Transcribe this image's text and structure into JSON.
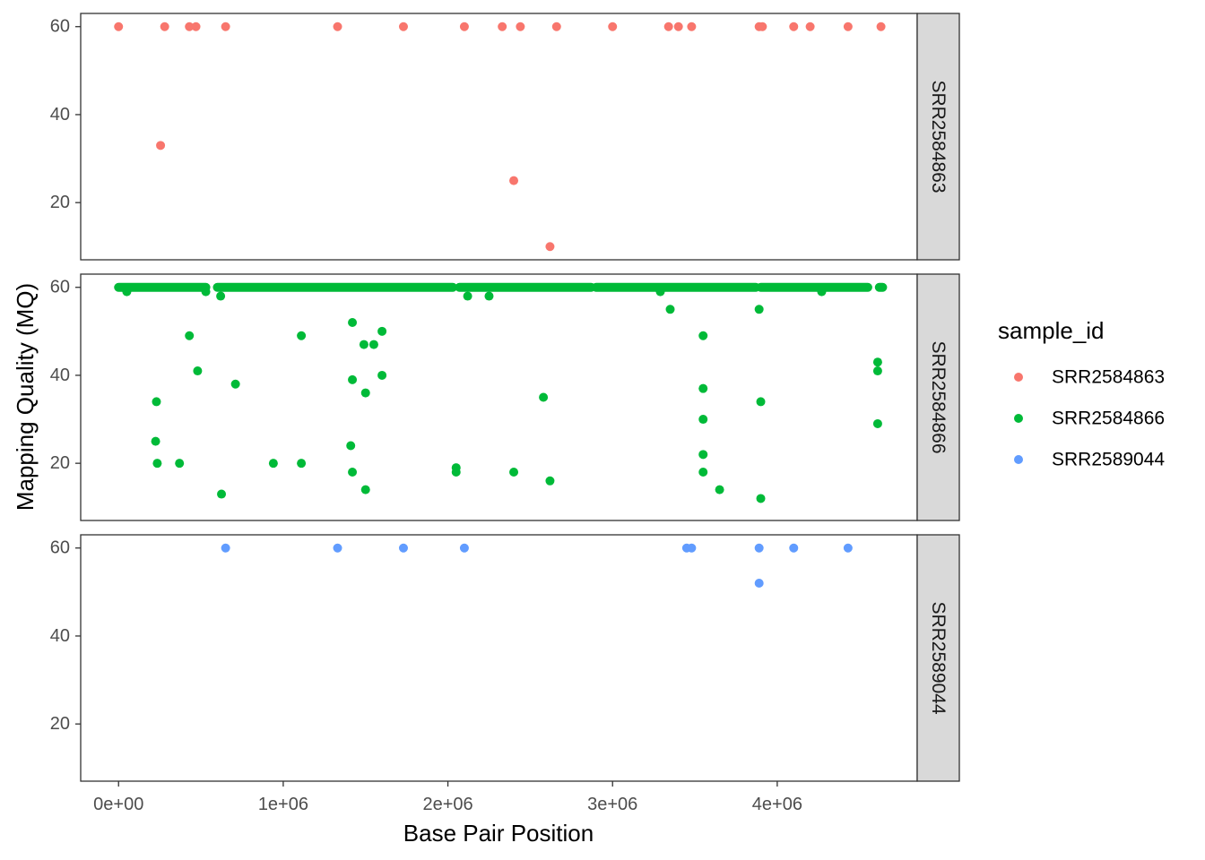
{
  "chart_data": {
    "type": "scatter",
    "xlabel": "Base Pair Position",
    "ylabel": "Mapping Quality (MQ)",
    "xlim": [
      -230000,
      4850000
    ],
    "ylim": [
      7,
      63
    ],
    "x_ticks": [
      0,
      1000000,
      2000000,
      3000000,
      4000000
    ],
    "x_tick_labels": [
      "0e+00",
      "1e+06",
      "2e+06",
      "3e+06",
      "4e+06"
    ],
    "y_ticks": [
      20,
      40,
      60
    ],
    "y_tick_labels": [
      "20",
      "40",
      "60"
    ],
    "legend": {
      "title": "sample_id",
      "position": "right",
      "entries": [
        "SRR2584863",
        "SRR2584866",
        "SRR2589044"
      ]
    },
    "colors": {
      "SRR2584863": "#F8766D",
      "SRR2584866": "#00BA38",
      "SRR2589044": "#619CFF",
      "strip_fill": "#D9D9D9",
      "panel_border": "#333333"
    },
    "panels": [
      {
        "strip_label": "SRR2584863",
        "series": "SRR2584863",
        "points": [
          [
            0,
            60
          ],
          [
            280000,
            60
          ],
          [
            430000,
            60
          ],
          [
            470000,
            60
          ],
          [
            650000,
            60
          ],
          [
            1330000,
            60
          ],
          [
            1730000,
            60
          ],
          [
            2100000,
            60
          ],
          [
            2330000,
            60
          ],
          [
            2440000,
            60
          ],
          [
            2660000,
            60
          ],
          [
            3000000,
            60
          ],
          [
            3340000,
            60
          ],
          [
            3400000,
            60
          ],
          [
            3480000,
            60
          ],
          [
            3890000,
            60
          ],
          [
            3910000,
            60
          ],
          [
            4100000,
            60
          ],
          [
            4200000,
            60
          ],
          [
            4430000,
            60
          ],
          [
            4630000,
            60
          ],
          [
            255000,
            33
          ],
          [
            2400000,
            25
          ],
          [
            2620000,
            10
          ]
        ]
      },
      {
        "strip_label": "SRR2584866",
        "series": "SRR2584866",
        "dense_runs": [
          [
            0,
            530000,
            60
          ],
          [
            600000,
            2030000,
            60
          ],
          [
            2070000,
            2870000,
            60
          ],
          [
            2900000,
            3870000,
            60
          ],
          [
            3900000,
            4550000,
            60
          ],
          [
            4620000,
            4640000,
            60
          ]
        ],
        "points": [
          [
            50000,
            59
          ],
          [
            530000,
            59
          ],
          [
            620000,
            58
          ],
          [
            2120000,
            58
          ],
          [
            2250000,
            58
          ],
          [
            3290000,
            59
          ],
          [
            4270000,
            59
          ],
          [
            230000,
            34
          ],
          [
            225000,
            25
          ],
          [
            235000,
            20
          ],
          [
            370000,
            20
          ],
          [
            430000,
            49
          ],
          [
            480000,
            41
          ],
          [
            625000,
            13
          ],
          [
            710000,
            38
          ],
          [
            940000,
            20
          ],
          [
            1110000,
            49
          ],
          [
            1110000,
            20
          ],
          [
            1420000,
            52
          ],
          [
            1420000,
            39
          ],
          [
            1410000,
            24
          ],
          [
            1420000,
            18
          ],
          [
            1490000,
            47
          ],
          [
            1550000,
            47
          ],
          [
            1500000,
            36
          ],
          [
            1500000,
            14
          ],
          [
            1600000,
            50
          ],
          [
            1600000,
            40
          ],
          [
            2050000,
            19
          ],
          [
            2050000,
            18
          ],
          [
            2400000,
            18
          ],
          [
            2580000,
            35
          ],
          [
            2620000,
            16
          ],
          [
            3350000,
            55
          ],
          [
            3550000,
            49
          ],
          [
            3550000,
            37
          ],
          [
            3550000,
            30
          ],
          [
            3550000,
            22
          ],
          [
            3550000,
            18
          ],
          [
            3650000,
            14
          ],
          [
            3890000,
            55
          ],
          [
            3900000,
            34
          ],
          [
            3900000,
            12
          ],
          [
            4610000,
            43
          ],
          [
            4610000,
            41
          ],
          [
            4610000,
            29
          ]
        ]
      },
      {
        "strip_label": "SRR2589044",
        "series": "SRR2589044",
        "points": [
          [
            650000,
            60
          ],
          [
            1330000,
            60
          ],
          [
            1730000,
            60
          ],
          [
            2100000,
            60
          ],
          [
            3450000,
            60
          ],
          [
            3480000,
            60
          ],
          [
            3890000,
            60
          ],
          [
            4100000,
            60
          ],
          [
            4430000,
            60
          ],
          [
            3890000,
            52
          ]
        ]
      }
    ]
  }
}
